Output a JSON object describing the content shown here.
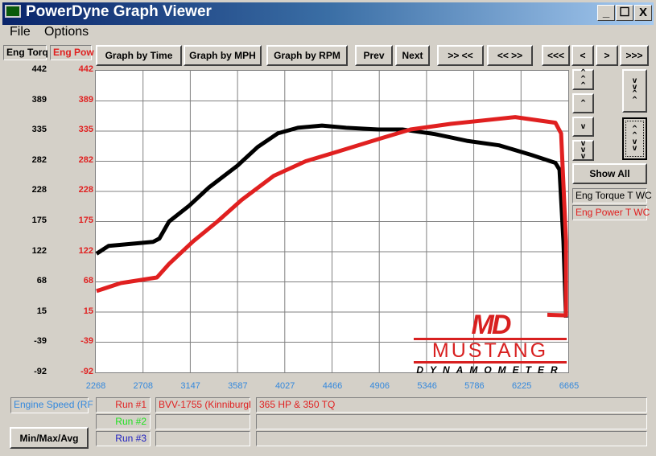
{
  "window": {
    "title": "PowerDyne Graph Viewer",
    "minimize": "_",
    "maximize": "☐",
    "close": "X"
  },
  "menu": [
    "File",
    "Options"
  ],
  "tabs": [
    {
      "label": "Eng Torq",
      "color": "#000000"
    },
    {
      "label": "Eng Pow",
      "color": "#e02020"
    }
  ],
  "toolbar": [
    "Graph by Time",
    "Graph by MPH",
    "Graph by RPM",
    "Prev",
    "Next",
    ">> <<",
    "<< >>",
    "<<<",
    "<",
    ">",
    ">>>"
  ],
  "side_buttons": {
    "up3": "^^^",
    "up1": "^",
    "down1": "v",
    "down3": "vvv",
    "collapse": "vv^^",
    "expand": "^^vv",
    "show_all": "Show All"
  },
  "legend": [
    {
      "label": "Eng Torque T WC",
      "color": "#000000"
    },
    {
      "label": "Eng Power T WC",
      "color": "#e02020"
    }
  ],
  "y_ticks_torque": [
    "442",
    "389",
    "335",
    "282",
    "228",
    "175",
    "122",
    "68",
    "15",
    "-39",
    "-92"
  ],
  "y_ticks_power": [
    "442",
    "389",
    "335",
    "282",
    "228",
    "175",
    "122",
    "68",
    "15",
    "-39",
    "-92"
  ],
  "x_ticks": [
    "2268",
    "2708",
    "3147",
    "3587",
    "4027",
    "4466",
    "4906",
    "5346",
    "5786",
    "6225",
    "6665"
  ],
  "x_axis_label": "Engine Speed (RF",
  "runs": [
    {
      "label": "Run #1",
      "color": "#e02020",
      "name": "BVV-1755 (Kinniburgl",
      "desc": "365 HP & 350 TQ"
    },
    {
      "label": "Run #2",
      "color": "#20e020",
      "name": "",
      "desc": ""
    },
    {
      "label": "Run #3",
      "color": "#2020c0",
      "name": "",
      "desc": ""
    }
  ],
  "minmax_button": "Min/Max/Avg",
  "logo": {
    "mark": "MD",
    "line1": "MUSTANG",
    "line2": "DYNAMOMETER",
    "color": "#d82020"
  },
  "chart_data": {
    "type": "line",
    "xlim": [
      2268,
      6665
    ],
    "ylim": [
      -92,
      442
    ],
    "grid": true,
    "series": [
      {
        "name": "Eng Torque T WC",
        "color": "#000000",
        "x": [
          2275,
          2388,
          2800,
          2860,
          2950,
          3137,
          3324,
          3586,
          3774,
          3961,
          4148,
          4373,
          4598,
          4897,
          5122,
          5422,
          5721,
          6021,
          6321,
          6545,
          6583,
          6620,
          6644
        ],
        "y": [
          118,
          132,
          139,
          145,
          175,
          203,
          236,
          274,
          307,
          331,
          341,
          345,
          341,
          338,
          338,
          330,
          318,
          310,
          293,
          279,
          267,
          140,
          5
        ]
      },
      {
        "name": "Eng Power T WC",
        "color": "#e02020",
        "x": [
          2275,
          2500,
          2837,
          2950,
          3174,
          3399,
          3624,
          3924,
          4223,
          4523,
          4897,
          5197,
          5571,
          5871,
          6171,
          6358,
          6545,
          6598,
          6644,
          6644,
          6470
        ],
        "y": [
          52,
          66,
          76,
          100,
          140,
          175,
          213,
          256,
          282,
          299,
          321,
          338,
          348,
          354,
          360,
          355,
          350,
          331,
          140,
          9,
          10
        ]
      }
    ]
  }
}
